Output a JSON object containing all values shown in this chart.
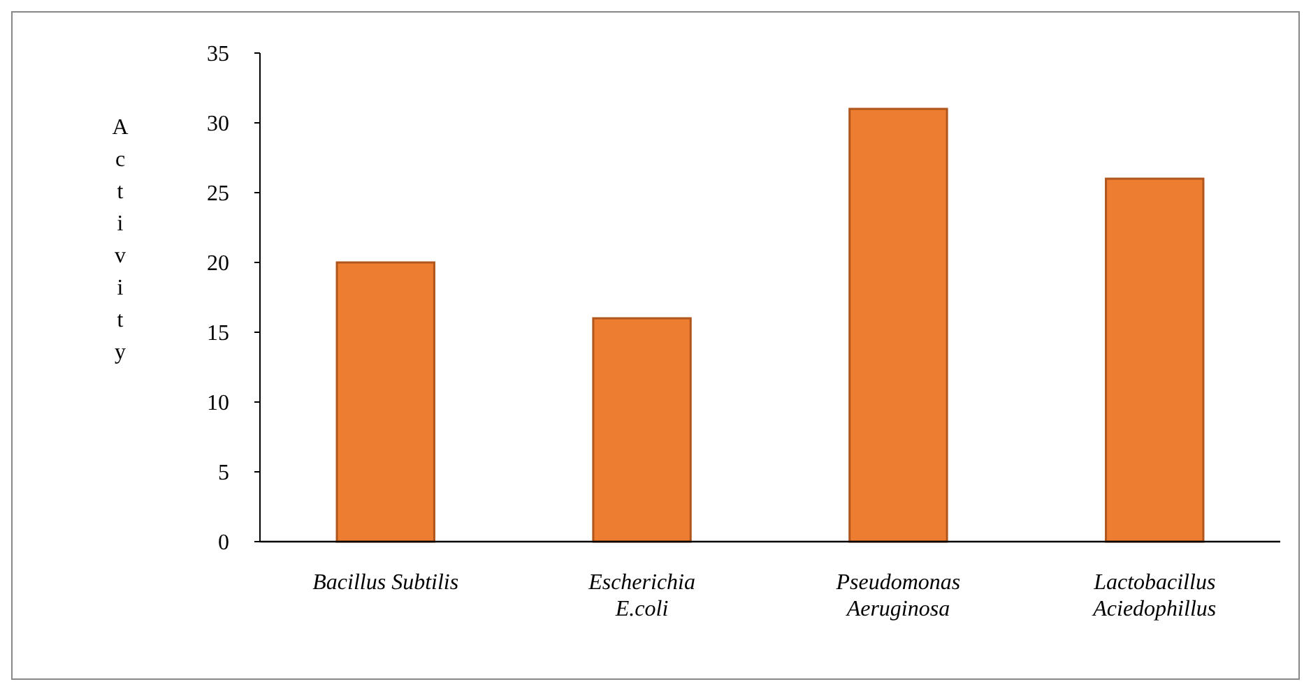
{
  "chart_data": {
    "type": "bar",
    "ylabel": "Activity",
    "categories": [
      "Bacillus Subtilis",
      "Escherichia\nE.coli",
      "Pseudomonas\nAeruginosa",
      "Lactobacillus\nAciedophillus"
    ],
    "values": [
      20,
      16,
      31,
      26
    ],
    "color": "#ed7d31",
    "ylim": [
      0,
      35
    ],
    "yticks": [
      0,
      5,
      10,
      15,
      20,
      25,
      30,
      35
    ]
  }
}
